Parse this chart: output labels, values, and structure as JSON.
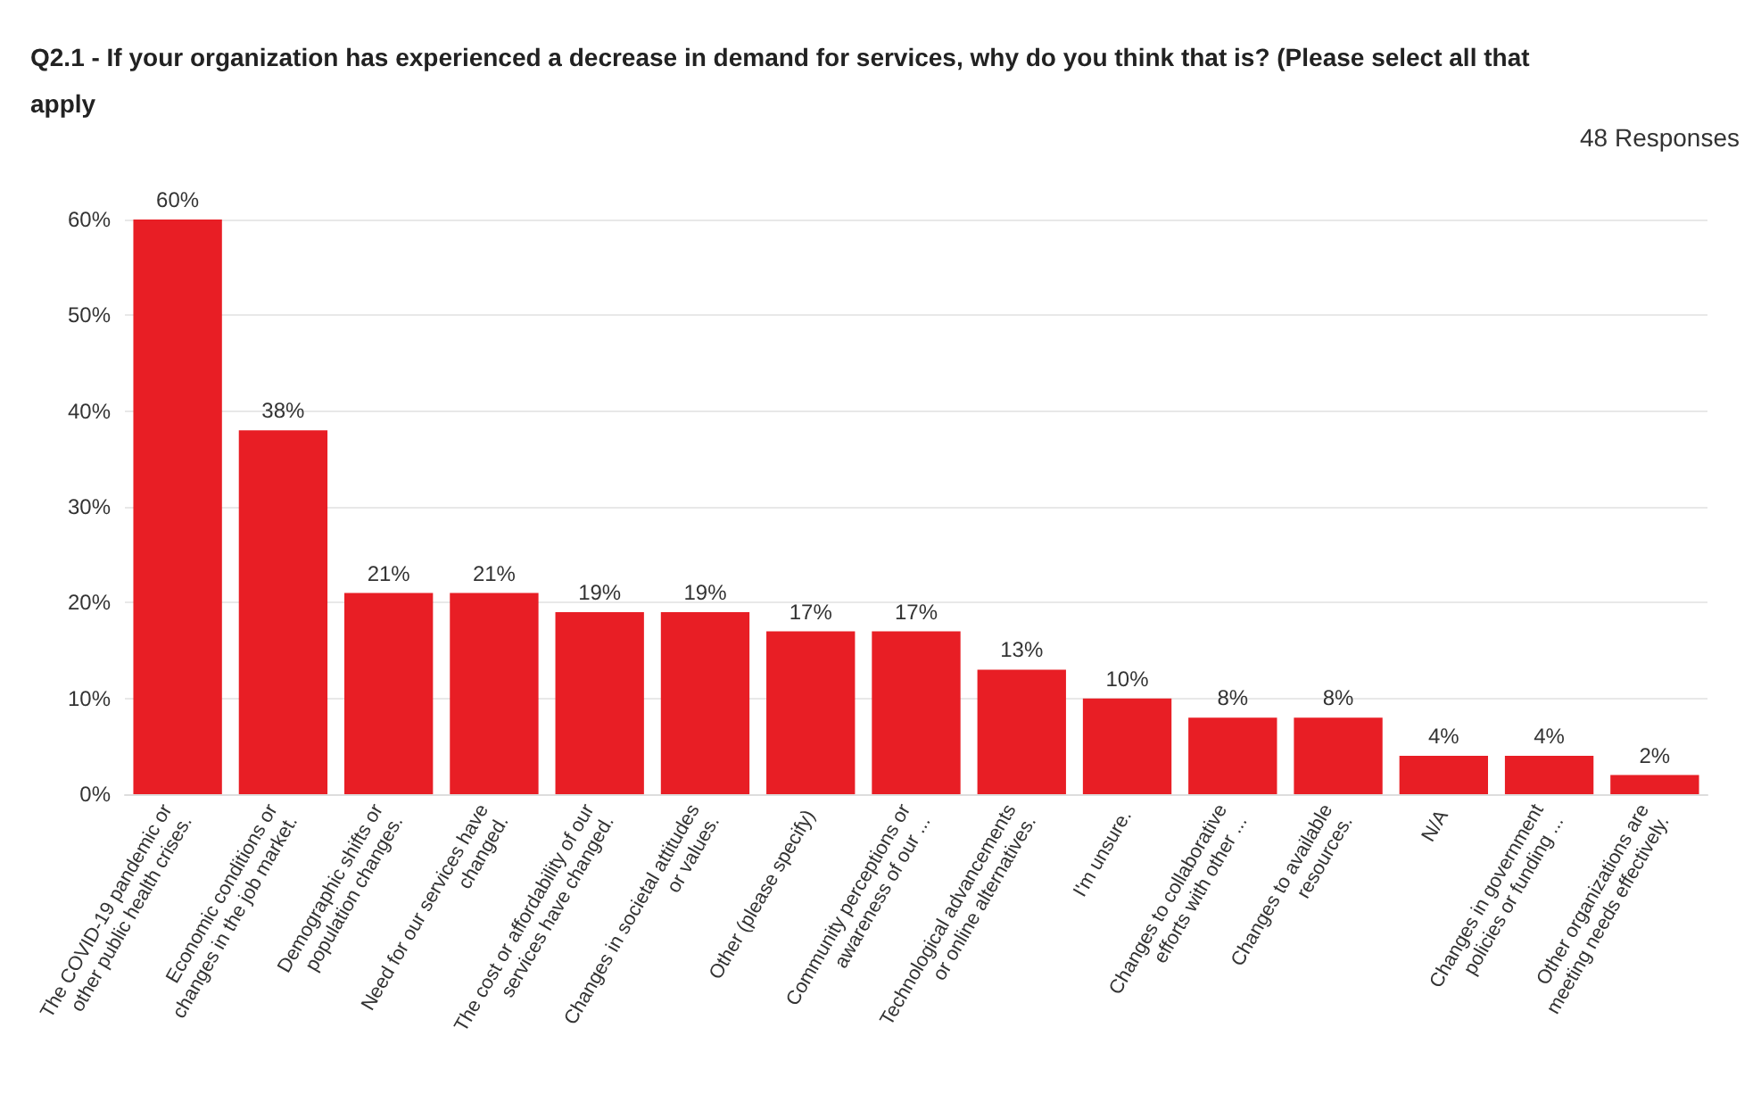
{
  "chart_data": {
    "type": "bar",
    "title": "Q2.1 - If your organization has experienced a decrease in demand for services, why do you think that is? (Please select all that apply",
    "annotations": [
      "48 Responses"
    ],
    "categories": [
      "The COVID-19 pandemic or\nother public health crises.",
      "Economic conditions or\nchanges in the job market.",
      "Demographic shifts or\npopulation changes.",
      "Need for our services have\nchanged.",
      "The cost or affordability of our\nservices have changed.",
      "Changes in societal attitudes\nor values.",
      "Other (please specify)",
      "Community perceptions or\nawareness of our ...",
      "Technological advancements\nor online alternatives.",
      "I'm unsure.",
      "Changes to collaborative\nefforts with other ...",
      "Changes to available\nresources.",
      "N/A",
      "Changes in government\npolicies or funding ...",
      "Other organizations are\nmeeting needs effectively."
    ],
    "values": [
      60,
      38,
      21,
      21,
      19,
      19,
      17,
      17,
      13,
      10,
      8,
      8,
      4,
      4,
      2
    ],
    "value_labels": [
      "60%",
      "38%",
      "21%",
      "21%",
      "19%",
      "19%",
      "17%",
      "17%",
      "13%",
      "10%",
      "8%",
      "8%",
      "4%",
      "4%",
      "2%"
    ],
    "color": "#e81e25",
    "ylim": [
      0,
      60
    ],
    "yticks": [
      {
        "value": 0,
        "label": "0%"
      },
      {
        "value": 10,
        "label": "10%"
      },
      {
        "value": 20,
        "label": "20%"
      },
      {
        "value": 30,
        "label": "30%"
      },
      {
        "value": 40,
        "label": "40%"
      },
      {
        "value": 50,
        "label": "50%"
      },
      {
        "value": 60,
        "label": "60%"
      }
    ],
    "grid": "y"
  }
}
